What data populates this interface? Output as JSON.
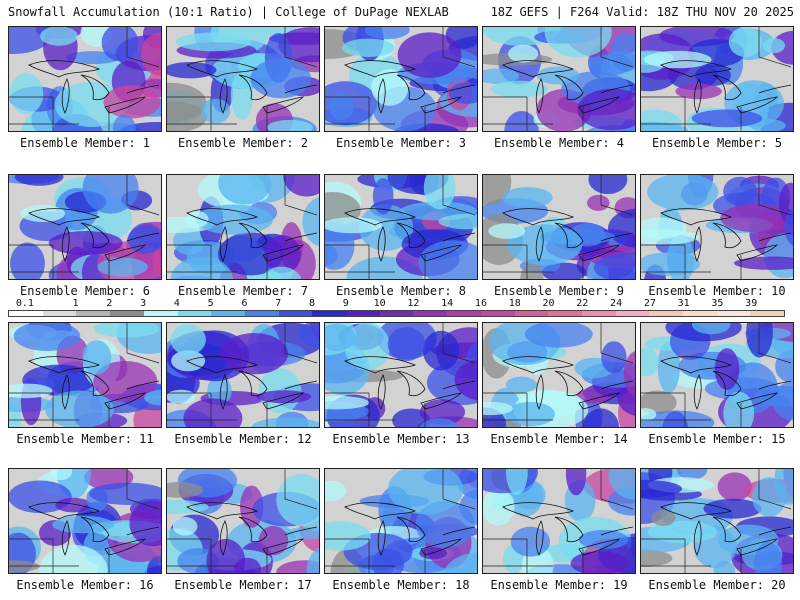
{
  "header": {
    "left_title": "Snowfall Accumulation (10:1 Ratio) | College of DuPage NEXLAB",
    "right_title": "18Z GEFS | F264 Valid: 18Z THU NOV 20 2025"
  },
  "members": [
    {
      "label": "Ensemble Member: 1"
    },
    {
      "label": "Ensemble Member: 2"
    },
    {
      "label": "Ensemble Member: 3"
    },
    {
      "label": "Ensemble Member: 4"
    },
    {
      "label": "Ensemble Member: 5"
    },
    {
      "label": "Ensemble Member: 6"
    },
    {
      "label": "Ensemble Member: 7"
    },
    {
      "label": "Ensemble Member: 8"
    },
    {
      "label": "Ensemble Member: 9"
    },
    {
      "label": "Ensemble Member: 10"
    },
    {
      "label": "Ensemble Member: 11"
    },
    {
      "label": "Ensemble Member: 12"
    },
    {
      "label": "Ensemble Member: 13"
    },
    {
      "label": "Ensemble Member: 14"
    },
    {
      "label": "Ensemble Member: 15"
    },
    {
      "label": "Ensemble Member: 16"
    },
    {
      "label": "Ensemble Member: 17"
    },
    {
      "label": "Ensemble Member: 18"
    },
    {
      "label": "Ensemble Member: 19"
    },
    {
      "label": "Ensemble Member: 20"
    }
  ],
  "colorbar": {
    "labels": [
      "0.1",
      "1",
      "2",
      "3",
      "4",
      "5",
      "6",
      "7",
      "8",
      "9",
      "10",
      "12",
      "14",
      "16",
      "18",
      "20",
      "22",
      "24",
      "27",
      "31",
      "35",
      "39"
    ],
    "colors": [
      "#ffffff",
      "#dcdcdc",
      "#b4b4b4",
      "#8c8c8c",
      "#b4fafa",
      "#78dcf0",
      "#5ab4f0",
      "#4682f0",
      "#3c50e6",
      "#2828d2",
      "#5a1ec8",
      "#7828be",
      "#9632b4",
      "#b43caa",
      "#c846a0",
      "#dc5a96",
      "#e66e96",
      "#f08cb4",
      "#f5aac8",
      "#f5c8b4",
      "#fadcc8",
      "#fae6dc",
      "#f5d2b4"
    ]
  }
}
